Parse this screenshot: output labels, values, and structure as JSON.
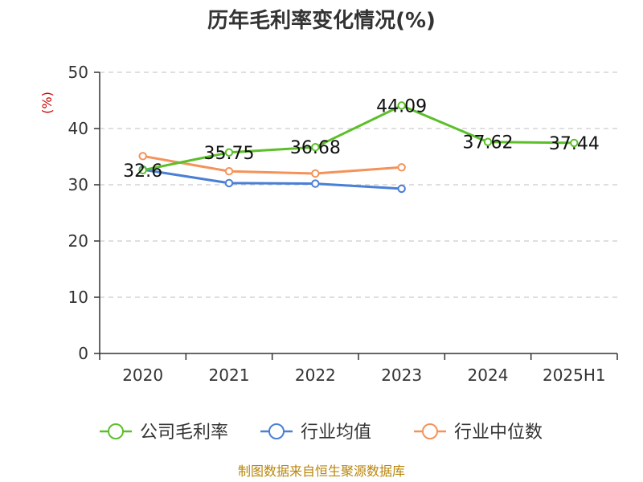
{
  "chart_data": {
    "type": "line",
    "title": "历年毛利率变化情况(%)",
    "unit_label": "(%)",
    "categories": [
      "2020",
      "2021",
      "2022",
      "2023",
      "2024",
      "2025H1"
    ],
    "ylim": [
      0,
      50
    ],
    "yticks": [
      0,
      10,
      20,
      30,
      40,
      50
    ],
    "grid": true,
    "legend_position": "bottom",
    "series": [
      {
        "name": "公司毛利率",
        "color": "#5cbf2a",
        "values": [
          32.6,
          35.75,
          36.68,
          44.09,
          37.62,
          37.44
        ],
        "labels": [
          "32.6",
          "35.75",
          "36.68",
          "44.09",
          "37.62",
          "37.44"
        ]
      },
      {
        "name": "行业均值",
        "color": "#4a7fd6",
        "values": [
          32.7,
          30.3,
          30.2,
          29.3,
          null,
          null
        ],
        "labels": null
      },
      {
        "name": "行业中位数",
        "color": "#f4925a",
        "values": [
          35.1,
          32.4,
          32.0,
          33.1,
          null,
          null
        ],
        "labels": null
      }
    ]
  },
  "source": "制图数据来自恒生聚源数据库"
}
